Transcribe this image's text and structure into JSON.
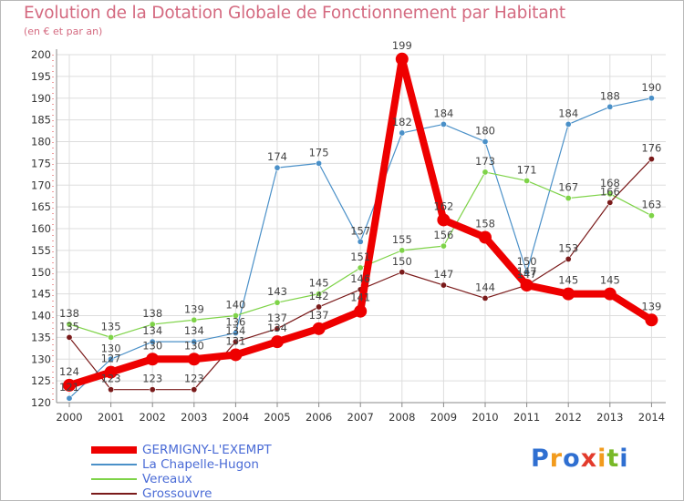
{
  "title": "Evolution de la Dotation Globale de Fonctionnement par Habitant",
  "subtitle": "(en € et par an)",
  "chart_data": {
    "type": "line",
    "x": [
      "2000",
      "2001",
      "2002",
      "2003",
      "2004",
      "2005",
      "2006",
      "2007",
      "2008",
      "2009",
      "2010",
      "2011",
      "2012",
      "2013",
      "2014"
    ],
    "ylim": [
      120,
      200
    ],
    "yticks": [
      120,
      125,
      130,
      135,
      140,
      145,
      150,
      155,
      160,
      165,
      170,
      175,
      180,
      185,
      190,
      195,
      200
    ],
    "grid": true,
    "legend_position": "bottom-left",
    "series": [
      {
        "name": "GERMIGNY-L'EXEMPT",
        "color": "#ee0000",
        "values": [
          124,
          127,
          130,
          130,
          131,
          134,
          137,
          141,
          199,
          162,
          158,
          147,
          145,
          145,
          139
        ]
      },
      {
        "name": "La Chapelle-Hugon",
        "color": "#4a90c8",
        "values": [
          121,
          130,
          134,
          134,
          136,
          174,
          175,
          157,
          182,
          184,
          180,
          150,
          184,
          188,
          190
        ]
      },
      {
        "name": "Vereaux",
        "color": "#7ed348",
        "values": [
          138,
          135,
          138,
          139,
          140,
          143,
          145,
          151,
          155,
          156,
          173,
          171,
          167,
          168,
          163
        ]
      },
      {
        "name": "Grossouvre",
        "color": "#7a1a1a",
        "values": [
          135,
          123,
          123,
          123,
          134,
          137,
          142,
          146,
          150,
          147,
          144,
          147,
          153,
          166,
          176
        ]
      }
    ]
  },
  "logo": {
    "letters": [
      "P",
      "r",
      "o",
      "x",
      "i",
      "t",
      "i"
    ],
    "colors": [
      "#2f6fd1",
      "#f29b1d",
      "#2f6fd1",
      "#e33b2c",
      "#f29b1d",
      "#79b928",
      "#2f6fd1"
    ]
  }
}
